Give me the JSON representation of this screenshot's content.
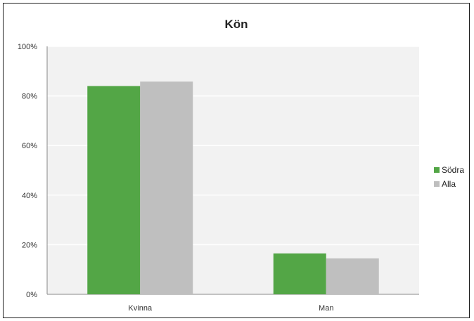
{
  "chart_data": {
    "type": "bar",
    "title": "Kön",
    "categories": [
      "Kvinna",
      "Man"
    ],
    "series": [
      {
        "name": "Södra",
        "values": [
          84,
          16.5
        ],
        "color": "#53a646"
      },
      {
        "name": "Alla",
        "values": [
          85.8,
          14.5
        ],
        "color": "#bfbfbf"
      }
    ],
    "ylim": [
      0,
      100
    ],
    "yticks": [
      0,
      20,
      40,
      60,
      80,
      100
    ],
    "ytick_labels": [
      "0%",
      "20%",
      "40%",
      "60%",
      "80%",
      "100%"
    ],
    "grid": true,
    "legend_position": "right",
    "plot_background": "#f2f2f2",
    "gridline_color": "#ffffff"
  }
}
